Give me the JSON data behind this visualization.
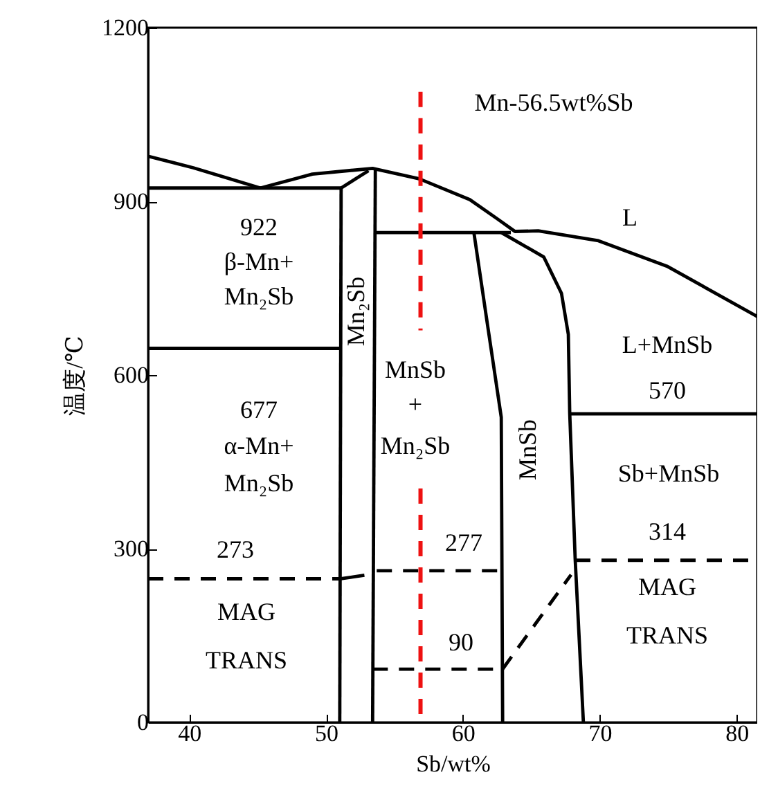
{
  "chart_data": {
    "type": "line",
    "xlabel": "Sb/wt%",
    "ylabel": "温度/℃",
    "xlim": [
      37,
      81.5
    ],
    "ylim": [
      0,
      1200
    ],
    "xticks": [
      40,
      50,
      60,
      70,
      80
    ],
    "yticks": [
      0,
      300,
      600,
      900,
      1200
    ],
    "grid": false,
    "marker": "none",
    "series": [
      {
        "color": "#000000",
        "line_style": "solid",
        "x": [
          37,
          40.3,
          45.2
        ],
        "values": [
          978,
          958,
          923
        ]
      },
      {
        "color": "#000000",
        "line_style": "solid",
        "x": [
          45.2,
          49,
          53.4,
          56.8,
          60.5,
          62.5,
          63.8,
          65.5,
          69.9,
          74.9,
          81.5
        ],
        "values": [
          923,
          947,
          957,
          939,
          903,
          870,
          848,
          849,
          832,
          788,
          701
        ]
      },
      {
        "color": "#000000",
        "line_style": "solid",
        "x": [
          37,
          51.1
        ],
        "values": [
          923,
          923
        ]
      },
      {
        "color": "#000000",
        "line_style": "solid",
        "x": [
          51.1,
          53.1
        ],
        "values": [
          923,
          953
        ]
      },
      {
        "color": "#000000",
        "line_style": "solid",
        "x": [
          51.1,
          51.0
        ],
        "values": [
          923,
          0
        ]
      },
      {
        "color": "#000000",
        "line_style": "solid",
        "x": [
          53.6,
          53.4
        ],
        "values": [
          957,
          0
        ]
      },
      {
        "color": "#000000",
        "line_style": "solid",
        "x": [
          37,
          51.1
        ],
        "values": [
          646,
          646
        ]
      },
      {
        "color": "#000000",
        "line_style": "solid",
        "x": [
          53.6,
          63.5
        ],
        "values": [
          846,
          846
        ]
      },
      {
        "color": "#000000",
        "line_style": "solid",
        "x": [
          60.8,
          61.8,
          62.8,
          62.9
        ],
        "values": [
          846,
          686,
          527,
          0
        ]
      },
      {
        "color": "#000000",
        "line_style": "solid",
        "x": [
          62.8,
          65.9,
          67.2,
          67.7,
          67.8,
          68.2,
          68.8
        ],
        "values": [
          846,
          804,
          741,
          670,
          535,
          282,
          0
        ]
      },
      {
        "color": "#000000",
        "line_style": "solid",
        "x": [
          67.8,
          81.5
        ],
        "values": [
          533,
          533
        ]
      },
      {
        "color": "#000000",
        "line_style": "dashed",
        "x": [
          37,
          51.0
        ],
        "values": [
          248,
          248
        ]
      },
      {
        "color": "#000000",
        "line_style": "solid",
        "x": [
          51.0,
          52.8
        ],
        "values": [
          248,
          254
        ]
      },
      {
        "color": "#000000",
        "line_style": "dashed",
        "x": [
          53.7,
          62.9
        ],
        "values": [
          262,
          262
        ]
      },
      {
        "color": "#000000",
        "line_style": "dashed",
        "x": [
          53.4,
          62.9
        ],
        "values": [
          92,
          92
        ]
      },
      {
        "color": "#000000",
        "line_style": "dashed",
        "x": [
          62.9,
          67.9
        ],
        "values": [
          92,
          255
        ]
      },
      {
        "color": "#000000",
        "line_style": "dashed",
        "x": [
          68.2,
          81.5
        ],
        "values": [
          280,
          280
        ]
      },
      {
        "color": "#ee1111",
        "line_style": "dashed",
        "x": [
          56.9,
          56.9
        ],
        "values": [
          1089,
          677
        ]
      },
      {
        "color": "#ee1111",
        "line_style": "dashed",
        "x": [
          56.9,
          56.9
        ],
        "values": [
          404,
          0
        ]
      }
    ],
    "annotations": [
      "Mn-56.5wt%Sb",
      "L",
      "922",
      "β-Mn+",
      "Mn₂Sb",
      "Mn₂Sb",
      "MnSb",
      "+",
      "Mn₂Sb",
      "MnSb",
      "L+MnSb",
      "570",
      "677",
      "α-Mn+",
      "Mn₂Sb",
      "Sb+MnSb",
      "273",
      "MAG",
      "TRANS",
      "277",
      "90",
      "314",
      "MAG",
      "TRANS"
    ]
  }
}
